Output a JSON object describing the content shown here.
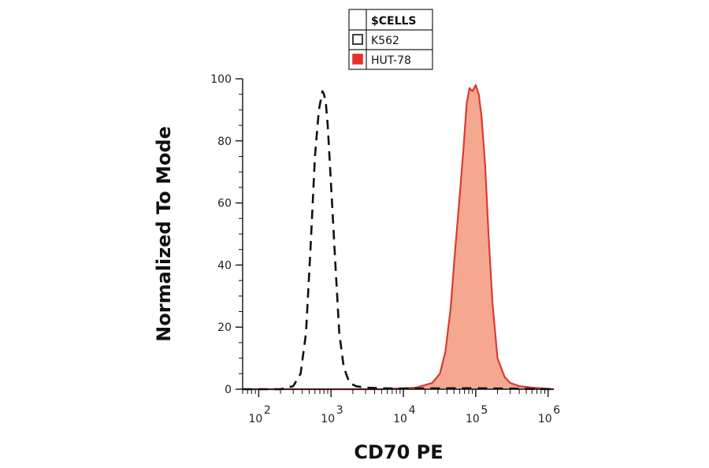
{
  "chart_data": {
    "type": "area",
    "xlabel": "CD70 PE",
    "ylabel": "Normalized To Mode",
    "x_scale": "log",
    "xlim": [
      60,
      1200000
    ],
    "ylim": [
      0,
      100
    ],
    "x_ticks": [
      {
        "base": "10",
        "exp": "2",
        "value": 100
      },
      {
        "base": "10",
        "exp": "3",
        "value": 1000
      },
      {
        "base": "10",
        "exp": "4",
        "value": 10000
      },
      {
        "base": "10",
        "exp": "5",
        "value": 100000
      },
      {
        "base": "10",
        "exp": "6",
        "value": 1000000
      }
    ],
    "y_ticks": [
      "0",
      "20",
      "40",
      "60",
      "80",
      "100"
    ],
    "legend": {
      "title": "$CELLS",
      "placement": "top-center",
      "entries": [
        {
          "label": "K562",
          "color": "#ffffff",
          "edge": "#111111",
          "style": "dashed-outline"
        },
        {
          "label": "HUT-78",
          "color": "#e8302c",
          "edge": "#e8302c",
          "style": "filled"
        }
      ]
    },
    "series": [
      {
        "name": "K562",
        "stroke": "#111111",
        "fill": "none",
        "dashed": true,
        "x": [
          60,
          200,
          300,
          380,
          450,
          520,
          600,
          680,
          760,
          800,
          850,
          900,
          1000,
          1150,
          1300,
          1500,
          1800,
          2200,
          3000,
          5000,
          10000,
          50000,
          100000,
          300000,
          1200000
        ],
        "y": [
          0,
          0,
          1,
          5,
          18,
          45,
          75,
          90,
          96,
          95,
          92,
          85,
          66,
          40,
          18,
          7,
          2,
          1,
          0.5,
          0.3,
          0.2,
          0.3,
          0.3,
          0.2,
          0
        ]
      },
      {
        "name": "HUT-78",
        "stroke": "#d93b33",
        "fill": "#f5a88f",
        "dashed": false,
        "x": [
          60,
          5000,
          15000,
          25000,
          32000,
          38000,
          45000,
          52000,
          60000,
          68000,
          75000,
          82000,
          90000,
          100000,
          110000,
          120000,
          135000,
          150000,
          170000,
          200000,
          250000,
          300000,
          400000,
          600000,
          1200000
        ],
        "y": [
          0,
          0,
          0.5,
          2,
          5,
          12,
          26,
          45,
          62,
          78,
          92,
          97,
          96,
          98,
          95,
          88,
          72,
          50,
          28,
          10,
          4,
          2,
          1,
          0.5,
          0
        ]
      }
    ]
  }
}
